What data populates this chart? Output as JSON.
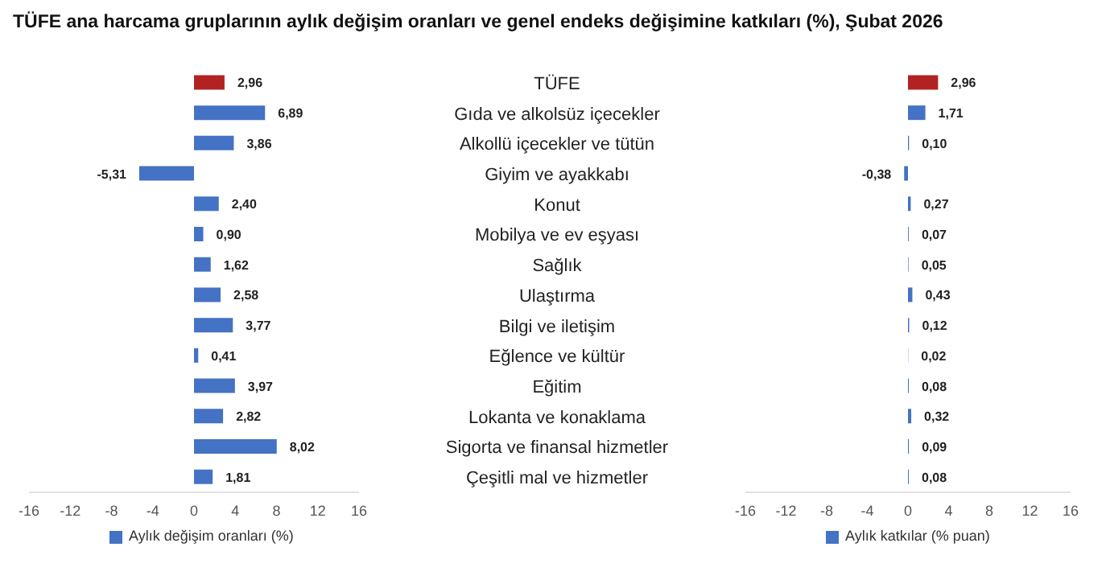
{
  "chart_data": [
    {
      "type": "bar",
      "orientation": "horizontal",
      "title": "TÜFE ana harcama gruplarının aylık değişim oranları ve genel endeks değişimine katkıları (%), Şubat 2026",
      "categories": [
        "TÜFE",
        "Gıda ve alkolsüz içecekler",
        "Alkollü içecekler ve tütün",
        "Giyim ve ayakkabı",
        "Konut",
        "Mobilya ve ev eşyası",
        "Sağlık",
        "Ulaştırma",
        "Bilgi ve iletişim",
        "Eğlence ve kültür",
        "Eğitim",
        "Lokanta ve konaklama",
        "Sigorta ve finansal hizmetler",
        "Çeşitli mal ve hizmetler"
      ],
      "series": [
        {
          "name": "Aylık değişim oranları (%)",
          "color": "#4472c4",
          "colors": [
            "#b22222",
            "#4472c4",
            "#4472c4",
            "#4472c4",
            "#4472c4",
            "#4472c4",
            "#4472c4",
            "#4472c4",
            "#4472c4",
            "#4472c4",
            "#4472c4",
            "#4472c4",
            "#4472c4",
            "#4472c4"
          ],
          "values": [
            2.96,
            6.89,
            3.86,
            -5.31,
            2.4,
            0.9,
            1.62,
            2.58,
            3.77,
            0.41,
            3.97,
            2.82,
            8.02,
            1.81
          ],
          "value_labels": [
            "2,96",
            "6,89",
            "3,86",
            "-5,31",
            "2,40",
            "0,90",
            "1,62",
            "2,58",
            "3,77",
            "0,41",
            "3,97",
            "2,82",
            "8,02",
            "1,81"
          ]
        }
      ],
      "xlim": [
        -16,
        16
      ],
      "xticks": [
        -16,
        -12,
        -8,
        -4,
        0,
        4,
        8,
        12,
        16
      ],
      "grid": false,
      "legend": "bottom"
    },
    {
      "type": "bar",
      "orientation": "horizontal",
      "categories": [
        null,
        null,
        null,
        null,
        null,
        null,
        null,
        null,
        null,
        null,
        null,
        null,
        null,
        null
      ],
      "series": [
        {
          "name": "Aylık katkılar (% puan)",
          "color": "#4472c4",
          "colors": [
            "#b22222",
            "#4472c4",
            "#4472c4",
            "#4472c4",
            "#4472c4",
            "#4472c4",
            "#4472c4",
            "#4472c4",
            "#4472c4",
            "#4472c4",
            "#4472c4",
            "#4472c4",
            "#4472c4",
            "#4472c4"
          ],
          "values": [
            2.96,
            1.71,
            0.1,
            -0.38,
            0.27,
            0.07,
            0.05,
            0.43,
            0.12,
            0.02,
            0.08,
            0.32,
            0.09,
            0.08
          ],
          "value_labels": [
            "2,96",
            "1,71",
            "0,10",
            "-0,38",
            "0,27",
            "0,07",
            "0,05",
            "0,43",
            "0,12",
            "0,02",
            "0,08",
            "0,32",
            "0,09",
            "0,08"
          ]
        }
      ],
      "xlim": [
        -16,
        16
      ],
      "xticks": [
        -16,
        -12,
        -8,
        -4,
        0,
        4,
        8,
        12,
        16
      ],
      "grid": false,
      "legend": "bottom",
      "tick_labels": "x"
    }
  ]
}
